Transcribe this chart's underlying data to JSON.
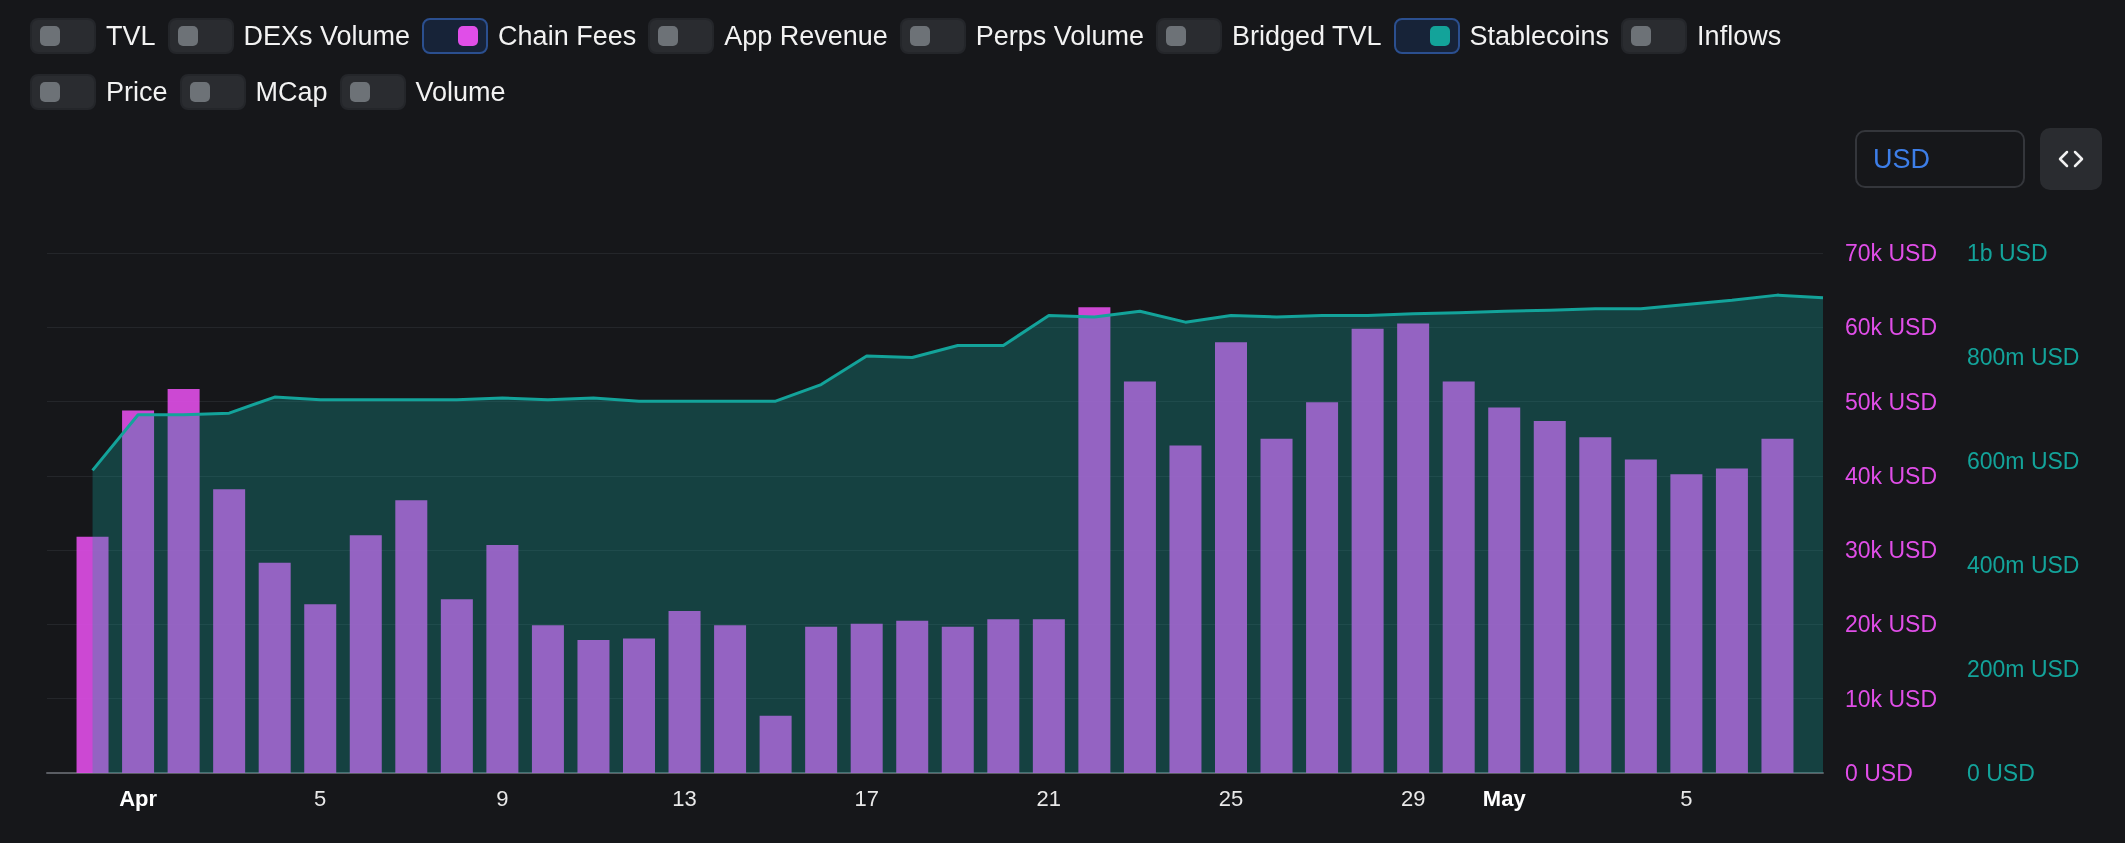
{
  "chart_data": {
    "type": "bar",
    "legend": "top",
    "annotations": [
      "TVL",
      "DEXs Volume",
      "App Revenue",
      "Perps Volume",
      "Bridged TVL",
      "Inflows",
      "Price",
      "MCap",
      "Volume",
      "USD"
    ],
    "xlim": [
      "--03-30",
      "--05-08"
    ],
    "xticks": [
      {
        "value": "--04-01",
        "label": "Apr"
      },
      {
        "value": "--04-05",
        "label": "5"
      },
      {
        "value": "--04-09",
        "label": "9"
      },
      {
        "value": "--04-13",
        "label": "13"
      },
      {
        "value": "--04-17",
        "label": "17"
      },
      {
        "value": "--04-21",
        "label": "21"
      },
      {
        "value": "--04-25",
        "label": "25"
      },
      {
        "value": "--04-29",
        "label": "29"
      },
      {
        "value": "--05-01",
        "label": "May"
      },
      {
        "value": "--05-05",
        "label": "5"
      }
    ],
    "ylim": [
      0,
      70000
    ],
    "yticks": [
      {
        "value": 0,
        "label": "0 USD"
      },
      {
        "value": 10000,
        "label": "10k USD"
      },
      {
        "value": 20000,
        "label": "20k USD"
      },
      {
        "value": 30000,
        "label": "30k USD"
      },
      {
        "value": 40000,
        "label": "40k USD"
      },
      {
        "value": 50000,
        "label": "50k USD"
      },
      {
        "value": 60000,
        "label": "60k USD"
      },
      {
        "value": 70000,
        "label": "70k USD"
      }
    ],
    "y2lim": [
      0,
      1000000000
    ],
    "y2ticks": [
      {
        "value": 0,
        "label": "0 USD"
      },
      {
        "value": 200000000,
        "label": "200m USD"
      },
      {
        "value": 400000000,
        "label": "400m USD"
      },
      {
        "value": 600000000,
        "label": "600m USD"
      },
      {
        "value": 800000000,
        "label": "800m USD"
      },
      {
        "value": 1000000000,
        "label": "1b USD"
      }
    ],
    "grid": "y",
    "series": [
      {
        "name": "Chain Fees",
        "color": "#e04ee8",
        "x": [
          "--03-31",
          "--04-01",
          "--04-02",
          "--04-03",
          "--04-04",
          "--04-05",
          "--04-06",
          "--04-07",
          "--04-08",
          "--04-09",
          "--04-10",
          "--04-11",
          "--04-12",
          "--04-13",
          "--04-14",
          "--04-15",
          "--04-16",
          "--04-17",
          "--04-18",
          "--04-19",
          "--04-20",
          "--04-21",
          "--04-22",
          "--04-23",
          "--04-24",
          "--04-25",
          "--04-26",
          "--04-27",
          "--04-28",
          "--04-29",
          "--04-30",
          "--05-01",
          "--05-02",
          "--05-03",
          "--05-04",
          "--05-05",
          "--05-06",
          "--05-07"
        ],
        "values": [
          31800,
          48800,
          51700,
          38200,
          28300,
          22700,
          32000,
          36700,
          23400,
          30700,
          19900,
          17900,
          18100,
          21800,
          19900,
          7700,
          19700,
          20100,
          20500,
          19700,
          20700,
          20700,
          62700,
          52700,
          44100,
          58000,
          45000,
          49900,
          59800,
          60500,
          52700,
          49200,
          47400,
          45200,
          42200,
          40200,
          41000,
          45000
        ]
      },
      {
        "name": "Stablecoins",
        "type": "area",
        "axis": "y2",
        "color": "#13a39a",
        "x": [
          "--03-31",
          "--04-01",
          "--04-02",
          "--04-03",
          "--04-04",
          "--04-05",
          "--04-06",
          "--04-07",
          "--04-08",
          "--04-09",
          "--04-10",
          "--04-11",
          "--04-12",
          "--04-13",
          "--04-14",
          "--04-15",
          "--04-16",
          "--04-17",
          "--04-18",
          "--04-19",
          "--04-20",
          "--04-21",
          "--04-22",
          "--04-23",
          "--04-24",
          "--04-25",
          "--04-26",
          "--04-27",
          "--04-28",
          "--04-29",
          "--04-30",
          "--05-01",
          "--05-02",
          "--05-03",
          "--05-04",
          "--05-05",
          "--05-06",
          "--05-07",
          "--05-08"
        ],
        "values": [
          582000000,
          689000000,
          689000000,
          692000000,
          723000000,
          718000000,
          718000000,
          718000000,
          718000000,
          721000000,
          718000000,
          721000000,
          715000000,
          715000000,
          715000000,
          715000000,
          747000000,
          802000000,
          799000000,
          822000000,
          822000000,
          880000000,
          877000000,
          888000000,
          867000000,
          880000000,
          877000000,
          880000000,
          880000000,
          883000000,
          885000000,
          888000000,
          890000000,
          893000000,
          893000000,
          901000000,
          909000000,
          919000000,
          914000000
        ]
      }
    ]
  }
}
